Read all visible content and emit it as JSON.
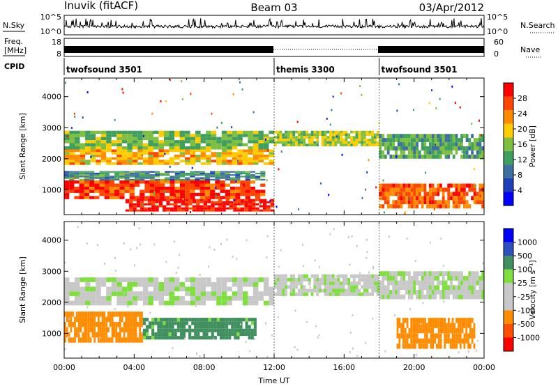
{
  "header": {
    "station": "Inuvik (fitACF)",
    "beam": "Beam 03",
    "date": "03/Apr/2012"
  },
  "strip": {
    "nsky_label": "N.Sky",
    "nsearch_label": "N.Search",
    "nsky_ticks": [
      "10^5",
      "10^0"
    ],
    "freq_label_1": "Freq.",
    "freq_label_2": "[MHz]",
    "freq_ticks": [
      "18",
      "8"
    ],
    "nave_label": "Nave",
    "nave_ticks": [
      "60",
      "0"
    ],
    "cpid_label": "CPID"
  },
  "cpid_segments": [
    {
      "start_hour": 0,
      "end_hour": 12,
      "label": "twofsound 3501"
    },
    {
      "start_hour": 12,
      "end_hour": 18,
      "label": "themis 3300"
    },
    {
      "start_hour": 18,
      "end_hour": 24,
      "label": "twofsound 3501"
    }
  ],
  "colors": {
    "power_scale": [
      "#0000ff",
      "#1f3fb8",
      "#3f6f9f",
      "#3f9f5f",
      "#7fbf3f",
      "#ffcc00",
      "#ff8c00",
      "#ff4500",
      "#ff0000"
    ],
    "velocity_scale": [
      "#ff0000",
      "#ff5000",
      "#ff8c00",
      "#c8c8c8",
      "#c8c8c8",
      "#7fdf3f",
      "#3f8f5f",
      "#2f4fbf",
      "#0000ff"
    ]
  },
  "chart_data": [
    {
      "type": "heatmap",
      "title": "",
      "xlabel": "",
      "ylabel": "Slant Range [km]",
      "x_range_hours": [
        0,
        24
      ],
      "ylim": [
        200,
        4600
      ],
      "yticks": [
        1000,
        2000,
        3000,
        4000
      ],
      "colorbar": {
        "label": "Power [dB]",
        "ticks": [
          "4",
          "8",
          "12",
          "16",
          "20",
          "24",
          "28"
        ],
        "range": [
          0,
          30
        ]
      },
      "bands": [
        {
          "x": [
            0,
            12
          ],
          "y": [
            2300,
            2900
          ],
          "value": 14
        },
        {
          "x": [
            0,
            12
          ],
          "y": [
            1800,
            2300
          ],
          "value": 20
        },
        {
          "x": [
            0,
            11.5
          ],
          "y": [
            1300,
            1600
          ],
          "value": 10
        },
        {
          "x": [
            0,
            11.5
          ],
          "y": [
            700,
            1300
          ],
          "value": 26
        },
        {
          "x": [
            3.5,
            12
          ],
          "y": [
            300,
            700
          ],
          "value": 28
        },
        {
          "x": [
            12,
            18
          ],
          "y": [
            2400,
            2900
          ],
          "value": 16
        },
        {
          "x": [
            18,
            24
          ],
          "y": [
            2000,
            2800
          ],
          "value": 12
        },
        {
          "x": [
            18,
            24
          ],
          "y": [
            400,
            1200
          ],
          "value": 24
        }
      ]
    },
    {
      "type": "heatmap",
      "title": "",
      "xlabel": "Time UT",
      "ylabel": "Slant Range [km]",
      "x_range_hours": [
        0,
        24
      ],
      "ylim": [
        200,
        4600
      ],
      "yticks": [
        1000,
        2000,
        3000,
        4000
      ],
      "xticks": [
        "00:00",
        "04:00",
        "08:00",
        "12:00",
        "16:00",
        "20:00",
        "00:00"
      ],
      "colorbar": {
        "label": "Velocity [m s⁻¹]",
        "ticks": [
          "1000",
          "500",
          "100",
          "25",
          "-25",
          "-100",
          "-500",
          "-1000"
        ]
      },
      "bands": [
        {
          "x": [
            0,
            12
          ],
          "y": [
            1900,
            2800
          ],
          "value": 0
        },
        {
          "x": [
            0,
            4.5
          ],
          "y": [
            700,
            1700
          ],
          "value": -300
        },
        {
          "x": [
            4.5,
            11
          ],
          "y": [
            800,
            1500
          ],
          "value": 150
        },
        {
          "x": [
            12,
            18
          ],
          "y": [
            2200,
            2900
          ],
          "value": 0
        },
        {
          "x": [
            18,
            24
          ],
          "y": [
            2100,
            3000
          ],
          "value": 0
        },
        {
          "x": [
            19,
            23.5
          ],
          "y": [
            500,
            1500
          ],
          "value": -400
        }
      ]
    }
  ]
}
